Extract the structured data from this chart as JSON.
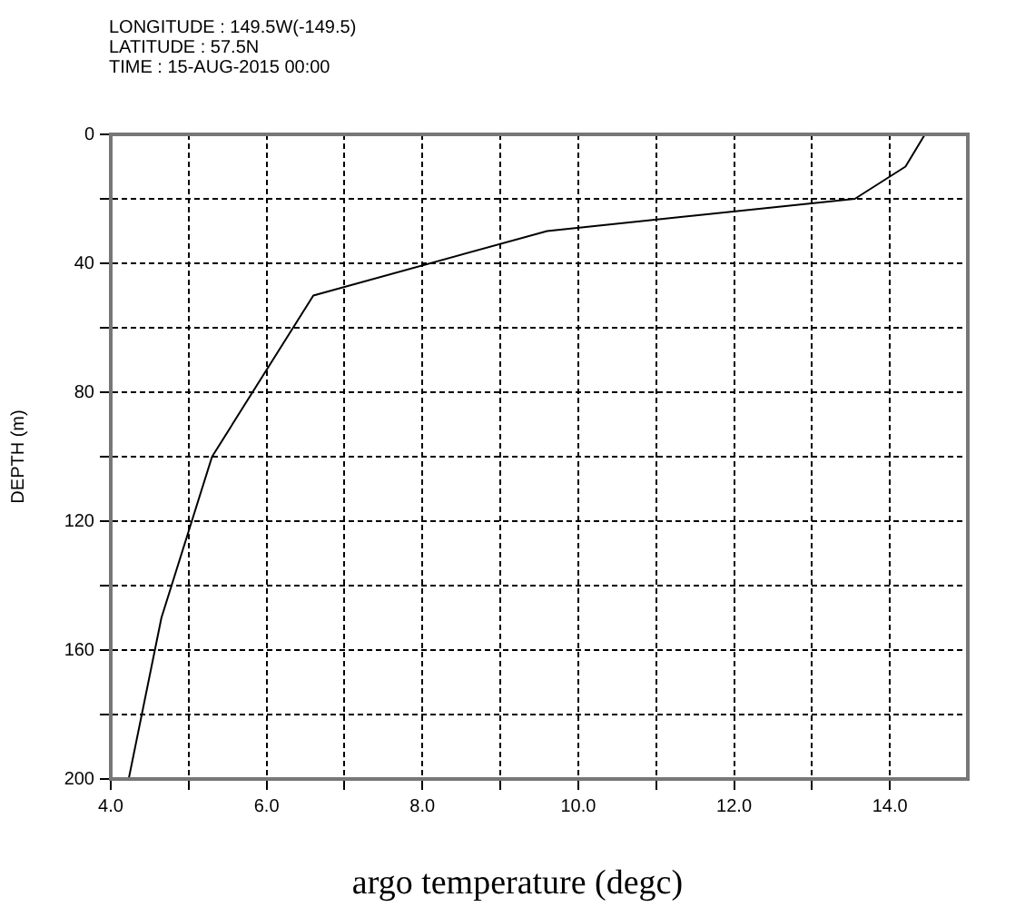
{
  "chart_data": {
    "type": "line",
    "xlabel": "argo temperature (degc)",
    "ylabel": "DEPTH (m)",
    "annotations": [
      "LONGITUDE : 149.5W(-149.5)",
      "LATITUDE : 57.5N",
      "TIME : 15-AUG-2015 00:00"
    ],
    "series": [
      {
        "color": "#000000",
        "x": [
          14.45,
          14.2,
          13.55,
          9.6,
          6.6,
          5.3,
          4.65,
          4.23
        ],
        "values": [
          0,
          10,
          20,
          30,
          50,
          100,
          150,
          200
        ]
      }
    ],
    "xlim": [
      4,
      15
    ],
    "xticks": [
      {
        "value": 4,
        "label": "4.0"
      },
      {
        "value": 5,
        "label": null
      },
      {
        "value": 6,
        "label": "6.0"
      },
      {
        "value": 7,
        "label": null
      },
      {
        "value": 8,
        "label": "8.0"
      },
      {
        "value": 9,
        "label": null
      },
      {
        "value": 10,
        "label": "10.0"
      },
      {
        "value": 11,
        "label": null
      },
      {
        "value": 12,
        "label": "12.0"
      },
      {
        "value": 13,
        "label": null
      },
      {
        "value": 14,
        "label": "14.0"
      }
    ],
    "ylim": [
      200,
      0
    ],
    "yticks": [
      0,
      {
        "value": 20,
        "label": null
      },
      40,
      {
        "value": 60,
        "label": null
      },
      80,
      {
        "value": 100,
        "label": null
      },
      120,
      {
        "value": 140,
        "label": null
      },
      160,
      {
        "value": 180,
        "label": null
      },
      200
    ],
    "grid": true,
    "marker": "none",
    "line_style": "solid",
    "legend": false
  }
}
